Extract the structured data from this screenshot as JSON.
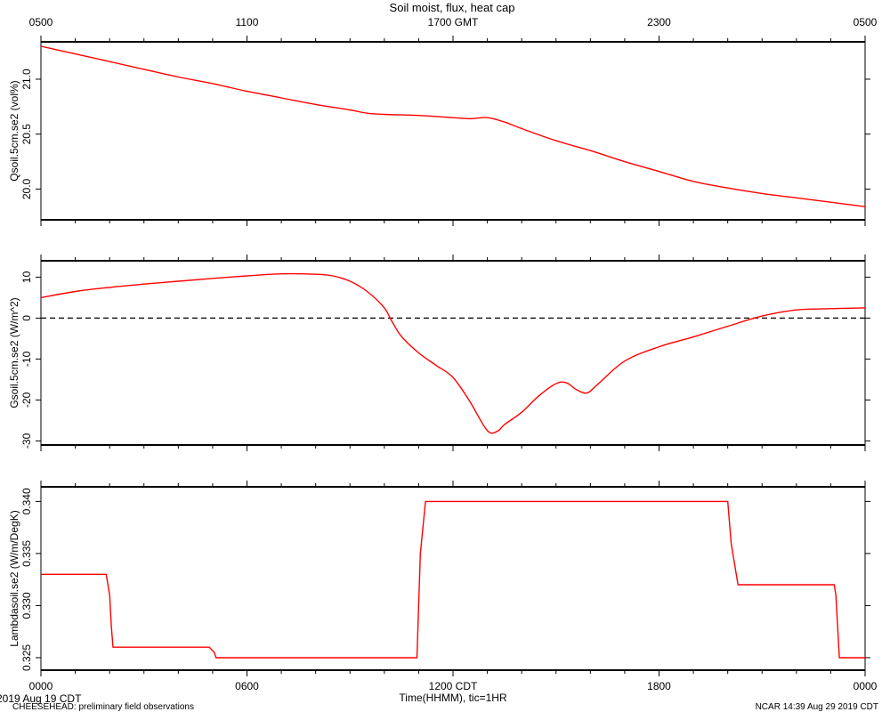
{
  "title": "Soil moist, flux, heat cap",
  "top_axis": {
    "tick_labels": [
      "0500",
      "1100",
      "1700 GMT",
      "2300",
      "0500"
    ]
  },
  "bottom_axis": {
    "tick_labels": [
      "0000",
      "0600",
      "1200 CDT",
      "1800",
      "0000"
    ],
    "label": "Time(HHMM), tic=1HR",
    "date_label": "2019 Aug 19 CDT"
  },
  "footer": {
    "left": "CHEESEHEAD: preliminary field observations",
    "right": "NCAR 14:39 Aug 29 2019 CDT"
  },
  "colors": {
    "line": "#ff0000",
    "axis": "#000000",
    "zero_line": "#000000"
  },
  "chart_data": [
    {
      "type": "line",
      "ylabel": "Qsoil.5cm.se2 (vol%)",
      "ylim": [
        19.72,
        21.34
      ],
      "y_ticks": [
        20.0,
        20.5,
        21.0
      ],
      "y_tick_labels": [
        "20.0",
        "20.5",
        "21.0"
      ],
      "x_unit": "hours since 0000 CDT",
      "xlim": [
        0,
        24
      ],
      "series": [
        {
          "x": [
            0,
            1,
            2,
            3,
            4,
            5,
            6,
            7,
            8,
            9,
            9.5,
            10,
            11,
            12,
            12.5,
            13,
            13.5,
            14,
            15,
            16,
            17,
            18,
            19,
            20,
            21,
            22,
            23,
            24
          ],
          "y": [
            21.3,
            21.23,
            21.16,
            21.09,
            21.02,
            20.96,
            20.89,
            20.83,
            20.77,
            20.72,
            20.69,
            20.68,
            20.67,
            20.65,
            20.64,
            20.65,
            20.61,
            20.55,
            20.44,
            20.35,
            20.25,
            20.16,
            20.07,
            20.01,
            19.96,
            19.92,
            19.88,
            19.84
          ]
        }
      ]
    },
    {
      "type": "line",
      "ylabel": "Gsoil.5cm.se2 (W/m^2)",
      "ylim": [
        -31,
        14
      ],
      "y_ticks": [
        -30,
        -20,
        -10,
        0,
        10
      ],
      "y_tick_labels": [
        "-30",
        "-20",
        "-10",
        "0",
        "10"
      ],
      "zero_line": true,
      "xlim": [
        0,
        24
      ],
      "series": [
        {
          "x": [
            0,
            1,
            2,
            3,
            4,
            5,
            6,
            7,
            8,
            8.5,
            9,
            9.5,
            10,
            10.2,
            10.5,
            11,
            11.5,
            12,
            12.5,
            13,
            13.3,
            13.5,
            14,
            14.5,
            15,
            15.3,
            15.6,
            15.9,
            16.2,
            17,
            18,
            19,
            20,
            21,
            22,
            23,
            24
          ],
          "y": [
            5,
            6.5,
            7.5,
            8.3,
            9,
            9.7,
            10.3,
            10.8,
            10.7,
            10.3,
            9,
            6.5,
            2.5,
            -0.5,
            -4.5,
            -8.5,
            -11.5,
            -14.5,
            -20.5,
            -27.5,
            -27.6,
            -26,
            -23,
            -19,
            -16,
            -15.8,
            -17.5,
            -18.3,
            -16.3,
            -10.5,
            -7,
            -4.6,
            -2,
            0.5,
            2,
            2.3,
            2.5
          ]
        }
      ]
    },
    {
      "type": "line",
      "ylabel": "Lambdasoil.se2 (W/m/DegK)",
      "ylim": [
        0.3238,
        0.3414
      ],
      "y_ticks": [
        0.325,
        0.33,
        0.335,
        0.34
      ],
      "y_tick_labels": [
        "0.325",
        "0.330",
        "0.335",
        "0.340"
      ],
      "xlim": [
        0,
        24
      ],
      "series": [
        {
          "x": [
            0,
            1.9,
            2.0,
            2.05,
            2.1,
            4.9,
            5.05,
            5.1,
            10.95,
            11.05,
            11.2,
            20.0,
            20.1,
            20.3,
            23.1,
            23.15,
            23.25,
            24
          ],
          "y": [
            0.333,
            0.333,
            0.331,
            0.328,
            0.326,
            0.326,
            0.3255,
            0.325,
            0.325,
            0.335,
            0.34,
            0.34,
            0.336,
            0.332,
            0.332,
            0.331,
            0.325,
            0.325
          ]
        }
      ]
    }
  ]
}
